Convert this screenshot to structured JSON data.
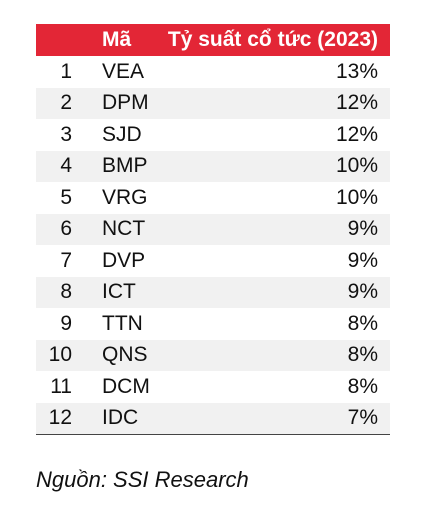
{
  "table": {
    "headers": {
      "rank": "",
      "code": "Mã",
      "yield": "Tỷ suất cổ tức (2023)"
    },
    "rows": [
      {
        "rank": "1",
        "code": "VEA",
        "yield": "13%"
      },
      {
        "rank": "2",
        "code": "DPM",
        "yield": "12%"
      },
      {
        "rank": "3",
        "code": "SJD",
        "yield": "12%"
      },
      {
        "rank": "4",
        "code": "BMP",
        "yield": "10%"
      },
      {
        "rank": "5",
        "code": "VRG",
        "yield": "10%"
      },
      {
        "rank": "6",
        "code": "NCT",
        "yield": "9%"
      },
      {
        "rank": "7",
        "code": "DVP",
        "yield": "9%"
      },
      {
        "rank": "8",
        "code": "ICT",
        "yield": "9%"
      },
      {
        "rank": "9",
        "code": "TTN",
        "yield": "8%"
      },
      {
        "rank": "10",
        "code": "QNS",
        "yield": "8%"
      },
      {
        "rank": "11",
        "code": "DCM",
        "yield": "8%"
      },
      {
        "rank": "12",
        "code": "IDC",
        "yield": "7%"
      }
    ]
  },
  "source": "Nguồn: SSI Research",
  "colors": {
    "header_bg": "#e32636",
    "stripe_bg": "#f1f1f1"
  }
}
